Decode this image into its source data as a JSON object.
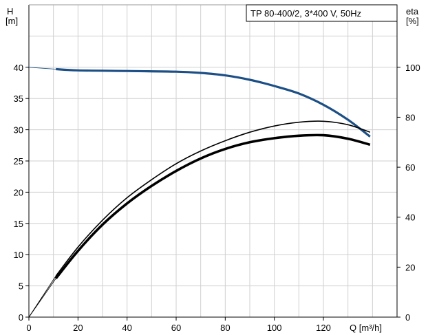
{
  "chart_data": {
    "type": "line",
    "title": "TP 80-400/2, 3*400 V, 50Hz",
    "x_axis": {
      "label": "Q [m³/h]",
      "range": [
        0,
        150
      ],
      "ticks": [
        0,
        20,
        40,
        60,
        80,
        100,
        120
      ],
      "tick_labels": [
        "0",
        "20",
        "40",
        "60",
        "80",
        "100",
        "120"
      ],
      "grid": true
    },
    "y_left": {
      "label_line1": "H",
      "label_line2": "[m]",
      "range": [
        0,
        50
      ],
      "ticks": [
        0,
        5,
        10,
        15,
        20,
        25,
        30,
        35,
        40
      ],
      "tick_labels": [
        "0",
        "5",
        "10",
        "15",
        "20",
        "25",
        "30",
        "35",
        "40"
      ],
      "grid": true
    },
    "y_right": {
      "label_line1": "eta",
      "label_line2": "[%]",
      "range": [
        0,
        125
      ],
      "ticks": [
        0,
        20,
        40,
        60,
        80,
        100
      ],
      "tick_labels": [
        "0",
        "20",
        "40",
        "60",
        "80",
        "100"
      ]
    },
    "series": [
      {
        "id": "head",
        "axis": "left",
        "color": "#1c4f86",
        "x": [
          0,
          11,
          20,
          40,
          60,
          70,
          80,
          90,
          100,
          110,
          120,
          130,
          139
        ],
        "y": [
          40.0,
          39.7,
          39.5,
          39.4,
          39.3,
          39.1,
          38.7,
          38.0,
          37.0,
          35.8,
          34.0,
          31.6,
          28.9
        ]
      },
      {
        "id": "eta-total",
        "axis": "right",
        "color": "#000000",
        "x": [
          0,
          11,
          20,
          30,
          40,
          50,
          60,
          70,
          80,
          90,
          100,
          110,
          120,
          130,
          139
        ],
        "y": [
          0,
          15.5,
          26.5,
          37.0,
          45.5,
          52.5,
          58.5,
          63.5,
          67.3,
          70.0,
          71.6,
          72.6,
          72.8,
          71.4,
          69.0
        ]
      },
      {
        "id": "eta-pump",
        "axis": "right",
        "color": "#000000",
        "x": [
          0,
          11,
          20,
          30,
          40,
          50,
          60,
          70,
          80,
          90,
          100,
          110,
          120,
          130,
          139
        ],
        "y": [
          0,
          16.5,
          28.0,
          38.8,
          47.8,
          55.0,
          61.4,
          66.5,
          70.6,
          74.0,
          76.5,
          78.0,
          78.4,
          77.0,
          74.0
        ]
      }
    ]
  }
}
